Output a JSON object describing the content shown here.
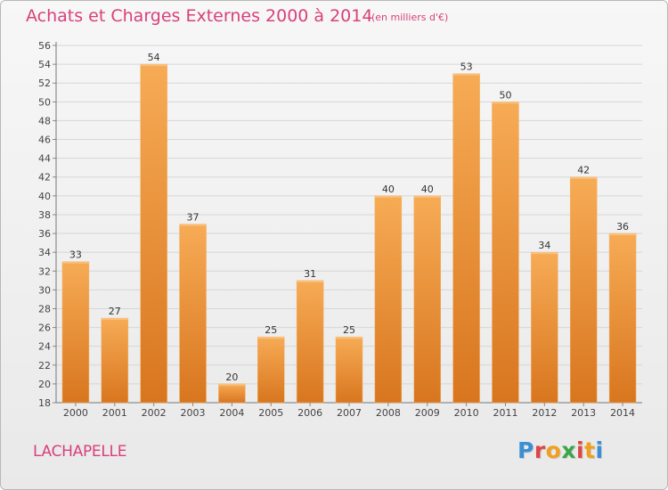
{
  "header": {
    "title": "Achats et Charges Externes 2000 à 2014",
    "subtitle": "(en milliers d'€)"
  },
  "footer": {
    "commune": "LACHAPELLE",
    "logo": "Proxiti"
  },
  "colors": {
    "title": "#d9407a",
    "bar_light": "#f6a851",
    "bar_dark": "#d8761f",
    "logo_letters": [
      "#3a8fd4",
      "#e04545",
      "#f0a020",
      "#3aa64a",
      "#e04545",
      "#f0a020",
      "#3a8fd4"
    ]
  },
  "chart_data": {
    "type": "bar",
    "title": "Achats et Charges Externes 2000 à 2014",
    "subtitle": "(en milliers d'€)",
    "categories": [
      "2000",
      "2001",
      "2002",
      "2003",
      "2004",
      "2005",
      "2006",
      "2007",
      "2008",
      "2009",
      "2010",
      "2011",
      "2012",
      "2013",
      "2014"
    ],
    "values": [
      33,
      27,
      54,
      37,
      20,
      25,
      31,
      25,
      40,
      40,
      53,
      50,
      34,
      42,
      36
    ],
    "ylim": [
      18,
      56
    ],
    "yticks": [
      18,
      20,
      22,
      24,
      26,
      28,
      30,
      32,
      34,
      36,
      38,
      40,
      42,
      44,
      46,
      48,
      50,
      52,
      54,
      56
    ],
    "grid": true,
    "legend": "none"
  }
}
